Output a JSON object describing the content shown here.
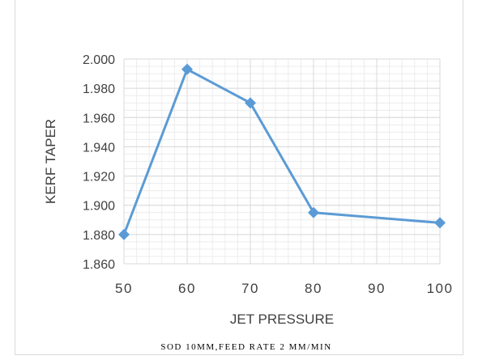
{
  "chart_data": {
    "type": "line",
    "x": [
      50,
      60,
      70,
      80,
      90,
      100
    ],
    "categories": [
      "50",
      "60",
      "70",
      "80",
      "90",
      "100"
    ],
    "series": [
      {
        "x": [
          50,
          60,
          70,
          80,
          100
        ],
        "values": [
          1.88,
          1.993,
          1.97,
          1.895,
          1.888
        ],
        "color": "#5b9bd5",
        "marker": "diamond"
      }
    ],
    "xlabel": "JET PRESSURE",
    "ylabel": "KERF TAPER",
    "ylim": [
      1.86,
      2.0
    ],
    "yticks": [
      "1.860",
      "1.880",
      "1.900",
      "1.920",
      "1.940",
      "1.960",
      "1.980",
      "2.000"
    ],
    "grid": true,
    "caption": "SOD 10MM,FEED RATE 2 MM/MIN"
  }
}
